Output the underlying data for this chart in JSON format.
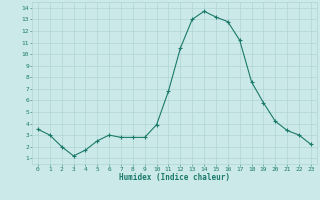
{
  "x": [
    0,
    1,
    2,
    3,
    4,
    5,
    6,
    7,
    8,
    9,
    10,
    11,
    12,
    13,
    14,
    15,
    16,
    17,
    18,
    19,
    20,
    21,
    22,
    23
  ],
  "y": [
    3.5,
    3.0,
    2.0,
    1.2,
    1.7,
    2.5,
    3.0,
    2.8,
    2.8,
    2.8,
    3.9,
    6.8,
    10.5,
    13.0,
    13.7,
    13.2,
    12.8,
    11.2,
    7.6,
    5.8,
    4.2,
    3.4,
    3.0,
    2.2
  ],
  "xlabel": "Humidex (Indice chaleur)",
  "ylim": [
    1,
    14
  ],
  "xlim": [
    0,
    23
  ],
  "yticks": [
    1,
    2,
    3,
    4,
    5,
    6,
    7,
    8,
    9,
    10,
    11,
    12,
    13,
    14
  ],
  "xticks": [
    0,
    1,
    2,
    3,
    4,
    5,
    6,
    7,
    8,
    9,
    10,
    11,
    12,
    13,
    14,
    15,
    16,
    17,
    18,
    19,
    20,
    21,
    22,
    23
  ],
  "line_color": "#1a7a6a",
  "marker": "+",
  "bg_color": "#cce9e9",
  "grid_color": "#b0d4d4",
  "tick_color": "#1a7a6a",
  "xlabel_fontsize": 5.5,
  "tick_fontsize": 4.5
}
